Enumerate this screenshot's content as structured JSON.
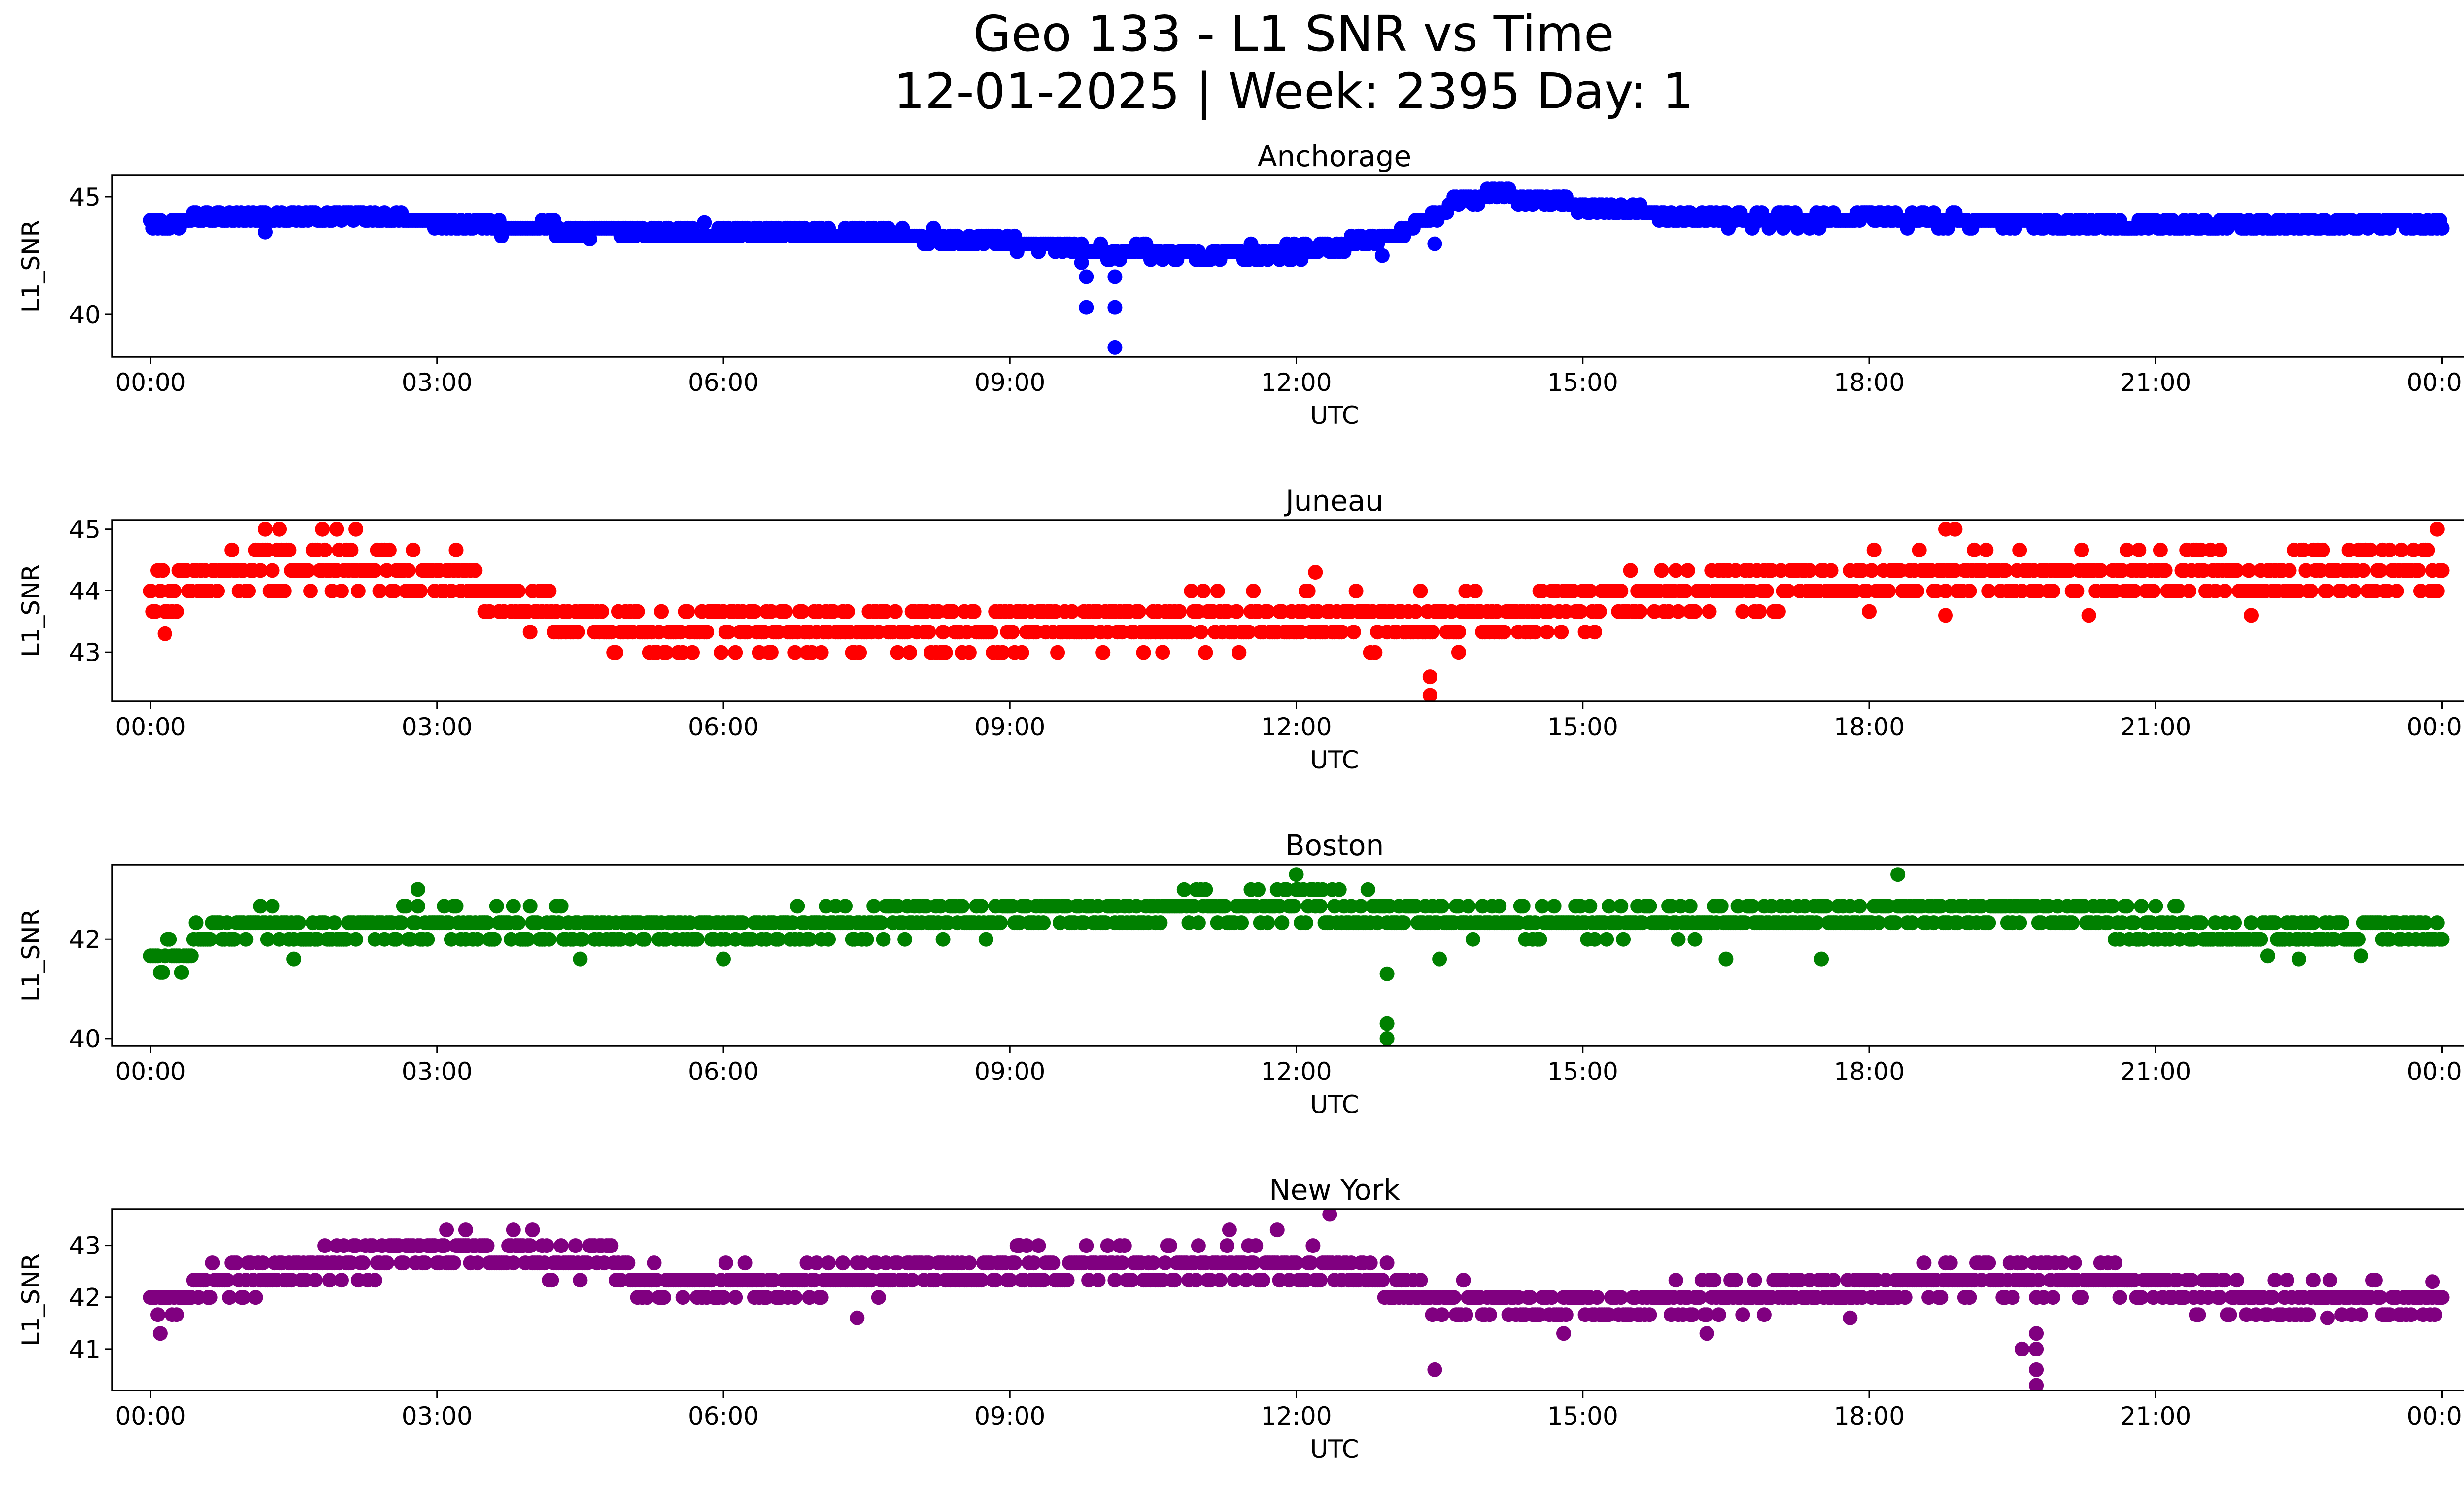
{
  "title": {
    "line1": "Geo 133 - L1 SNR vs Time",
    "line2": "12-01-2025 | Week: 2395 Day: 1"
  },
  "chart_data": [
    {
      "type": "scatter",
      "title": "Anchorage",
      "xlabel": "UTC",
      "ylabel": "L1_SNR",
      "color": "#0000ff",
      "xlim": [
        -0.4,
        25.2
      ],
      "xticks": [
        0,
        3,
        6,
        9,
        12,
        15,
        18,
        21,
        24
      ],
      "xtick_labels": [
        "00:00",
        "03:00",
        "06:00",
        "09:00",
        "12:00",
        "15:00",
        "18:00",
        "21:00",
        "00:00"
      ],
      "ylim": [
        38.2,
        45.9
      ],
      "yticks": [
        40,
        45
      ],
      "band": [
        [
          0,
          43.8
        ],
        [
          0.5,
          44.1
        ],
        [
          1.5,
          44.2
        ],
        [
          2.5,
          44.1
        ],
        [
          3.5,
          43.7
        ],
        [
          5.5,
          43.5
        ],
        [
          7.5,
          43.5
        ],
        [
          9.2,
          43.0
        ],
        [
          10,
          42.6
        ],
        [
          11,
          42.6
        ],
        [
          12.2,
          42.7
        ],
        [
          13.1,
          43.4
        ],
        [
          13.6,
          44.6
        ],
        [
          14.0,
          45.2
        ],
        [
          14.5,
          44.9
        ],
        [
          15.5,
          44.4
        ],
        [
          16.5,
          44.0
        ],
        [
          18,
          44.1
        ],
        [
          19.5,
          43.9
        ],
        [
          21,
          43.8
        ],
        [
          24,
          43.9
        ]
      ],
      "spread": 0.5,
      "outliers": [
        [
          9.8,
          41.6
        ],
        [
          9.8,
          40.3
        ],
        [
          10.1,
          41.6
        ],
        [
          10.1,
          40.3
        ],
        [
          10.1,
          38.6
        ],
        [
          9.75,
          42.2
        ],
        [
          13.45,
          43.0
        ],
        [
          1.2,
          43.5
        ],
        [
          4.6,
          43.2
        ],
        [
          5.8,
          43.9
        ],
        [
          12.9,
          42.5
        ],
        [
          14.8,
          45.0
        ]
      ]
    },
    {
      "type": "scatter",
      "title": "Juneau",
      "xlabel": "UTC",
      "ylabel": "L1_SNR",
      "color": "#ff0000",
      "xlim": [
        -0.4,
        25.2
      ],
      "xticks": [
        0,
        3,
        6,
        9,
        12,
        15,
        18,
        21,
        24
      ],
      "xtick_labels": [
        "00:00",
        "03:00",
        "06:00",
        "09:00",
        "12:00",
        "15:00",
        "18:00",
        "21:00",
        "00:00"
      ],
      "ylim": [
        42.2,
        45.15
      ],
      "yticks": [
        43,
        44,
        45
      ],
      "band": [
        [
          0,
          43.9
        ],
        [
          0.7,
          44.2
        ],
        [
          1.5,
          44.4
        ],
        [
          2.5,
          44.3
        ],
        [
          3.5,
          44.1
        ],
        [
          4.0,
          43.6
        ],
        [
          5.0,
          43.4
        ],
        [
          7,
          43.4
        ],
        [
          9,
          43.4
        ],
        [
          11,
          43.5
        ],
        [
          13,
          43.5
        ],
        [
          14.5,
          43.6
        ],
        [
          15.5,
          43.9
        ],
        [
          16.5,
          44.1
        ],
        [
          18.5,
          44.2
        ],
        [
          21,
          44.2
        ],
        [
          24,
          44.3
        ]
      ],
      "spread": 0.7,
      "outliers": [
        [
          0.15,
          43.3
        ],
        [
          1.2,
          45.0
        ],
        [
          1.35,
          45.0
        ],
        [
          1.8,
          45.0
        ],
        [
          1.95,
          45.0
        ],
        [
          2.15,
          45.0
        ],
        [
          13.4,
          42.6
        ],
        [
          13.4,
          42.3
        ],
        [
          18.8,
          45.0
        ],
        [
          18.9,
          45.0
        ],
        [
          23.95,
          45.0
        ],
        [
          12.2,
          44.3
        ],
        [
          5.3,
          43.0
        ],
        [
          6.5,
          43.0
        ],
        [
          8.3,
          43.0
        ],
        [
          10.6,
          43.0
        ],
        [
          13.7,
          43.0
        ],
        [
          18.8,
          43.6
        ],
        [
          20.3,
          43.6
        ],
        [
          22.0,
          43.6
        ]
      ]
    },
    {
      "type": "scatter",
      "title": "Boston",
      "xlabel": "UTC",
      "ylabel": "L1_SNR",
      "color": "#008000",
      "xlim": [
        -0.4,
        25.2
      ],
      "xticks": [
        0,
        3,
        6,
        9,
        12,
        15,
        18,
        21,
        24
      ],
      "xtick_labels": [
        "00:00",
        "03:00",
        "06:00",
        "09:00",
        "12:00",
        "15:00",
        "18:00",
        "21:00",
        "00:00"
      ],
      "ylim": [
        39.85,
        43.5
      ],
      "yticks": [
        40,
        42
      ],
      "band": [
        [
          0,
          41.5
        ],
        [
          0.3,
          41.7
        ],
        [
          0.5,
          42.0
        ],
        [
          1,
          42.2
        ],
        [
          3,
          42.3
        ],
        [
          6,
          42.2
        ],
        [
          8,
          42.4
        ],
        [
          10,
          42.5
        ],
        [
          12,
          42.7
        ],
        [
          13,
          42.5
        ],
        [
          15,
          42.3
        ],
        [
          18,
          42.5
        ],
        [
          20,
          42.5
        ],
        [
          21,
          42.3
        ],
        [
          22,
          42.1
        ],
        [
          24,
          42.1
        ]
      ],
      "spread": 0.6,
      "outliers": [
        [
          12.95,
          41.3
        ],
        [
          12.95,
          40.3
        ],
        [
          12.95,
          40.0
        ],
        [
          12.0,
          43.3
        ],
        [
          18.3,
          43.3
        ],
        [
          2.8,
          43.0
        ],
        [
          1.5,
          41.6
        ],
        [
          4.5,
          41.6
        ],
        [
          6.0,
          41.6
        ],
        [
          16.5,
          41.6
        ],
        [
          17.5,
          41.6
        ],
        [
          22.5,
          41.6
        ],
        [
          13.5,
          41.6
        ]
      ]
    },
    {
      "type": "scatter",
      "title": "New York",
      "xlabel": "UTC",
      "ylabel": "L1_SNR",
      "color": "#800080",
      "xlim": [
        -0.4,
        25.2
      ],
      "xticks": [
        0,
        3,
        6,
        9,
        12,
        15,
        18,
        21,
        24
      ],
      "xtick_labels": [
        "00:00",
        "03:00",
        "06:00",
        "09:00",
        "12:00",
        "15:00",
        "18:00",
        "21:00",
        "00:00"
      ],
      "ylim": [
        40.2,
        43.7
      ],
      "yticks": [
        41,
        42,
        43
      ],
      "band": [
        [
          0,
          41.8
        ],
        [
          0.5,
          42.2
        ],
        [
          1.5,
          42.5
        ],
        [
          2.5,
          42.8
        ],
        [
          3.5,
          42.8
        ],
        [
          4.8,
          42.7
        ],
        [
          5.2,
          42.3
        ],
        [
          6.5,
          42.2
        ],
        [
          8,
          42.5
        ],
        [
          10,
          42.6
        ],
        [
          12,
          42.6
        ],
        [
          12.8,
          42.5
        ],
        [
          13.2,
          42.1
        ],
        [
          14,
          41.8
        ],
        [
          16,
          41.9
        ],
        [
          17.8,
          42.1
        ],
        [
          18.5,
          42.3
        ],
        [
          20,
          42.4
        ],
        [
          21,
          42.2
        ],
        [
          22,
          41.9
        ],
        [
          24,
          41.9
        ]
      ],
      "spread": 0.6,
      "outliers": [
        [
          3.1,
          43.3
        ],
        [
          3.3,
          43.3
        ],
        [
          3.8,
          43.3
        ],
        [
          4.0,
          43.3
        ],
        [
          11.3,
          43.3
        ],
        [
          11.8,
          43.3
        ],
        [
          12.35,
          43.6
        ],
        [
          13.45,
          40.6
        ],
        [
          19.75,
          41.3
        ],
        [
          19.75,
          41.0
        ],
        [
          19.75,
          40.6
        ],
        [
          19.75,
          40.3
        ],
        [
          19.6,
          41.0
        ],
        [
          0.1,
          41.3
        ],
        [
          7.4,
          41.6
        ],
        [
          14.8,
          41.3
        ],
        [
          16.3,
          41.3
        ],
        [
          9.1,
          43.0
        ],
        [
          17.8,
          41.6
        ],
        [
          22.8,
          41.6
        ],
        [
          23.9,
          42.3
        ]
      ]
    }
  ]
}
